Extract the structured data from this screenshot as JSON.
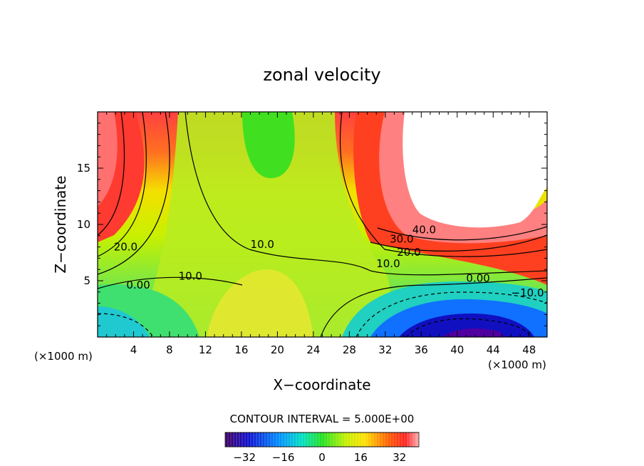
{
  "chart_data": {
    "type": "contour",
    "title": "zonal velocity",
    "xlabel": "X−coordinate",
    "ylabel": "Z−coordinate",
    "x_unit_left": "(×1000 m)",
    "x_unit_right": "(×1000 m)",
    "xlim": [
      0,
      50
    ],
    "ylim": [
      0,
      20
    ],
    "x_ticks": [
      "4",
      "8",
      "12",
      "16",
      "20",
      "24",
      "28",
      "32",
      "36",
      "40",
      "44",
      "48"
    ],
    "y_ticks": [
      "5",
      "10",
      "15"
    ],
    "contour_labels": [
      {
        "text": "40.0",
        "x": 35.0,
        "y": 9.2
      },
      {
        "text": "30.0",
        "x": 32.5,
        "y": 8.4
      },
      {
        "text": "20.0",
        "x": 33.3,
        "y": 7.2
      },
      {
        "text": "10.0",
        "x": 31.0,
        "y": 6.2
      },
      {
        "text": "0.00",
        "x": 41.0,
        "y": 4.9
      },
      {
        "text": "−10.0",
        "x": 46.0,
        "y": 3.6
      },
      {
        "text": "20.0",
        "x": 1.8,
        "y": 7.7
      },
      {
        "text": "10.0",
        "x": 17.0,
        "y": 7.9
      },
      {
        "text": "10.0",
        "x": 9.0,
        "y": 5.1
      },
      {
        "text": "0.00",
        "x": 3.2,
        "y": 4.3
      }
    ],
    "contour_interval_text": "CONTOUR INTERVAL = 5.000E+00",
    "colorbar": {
      "min": -40,
      "max": 40,
      "tick_labels": [
        "−32",
        "−16",
        "0",
        "16",
        "32"
      ],
      "tick_values": [
        -32,
        -16,
        0,
        16,
        32
      ]
    }
  },
  "colors": {
    "white_region": "#ffffff",
    "frame": "#000000"
  }
}
